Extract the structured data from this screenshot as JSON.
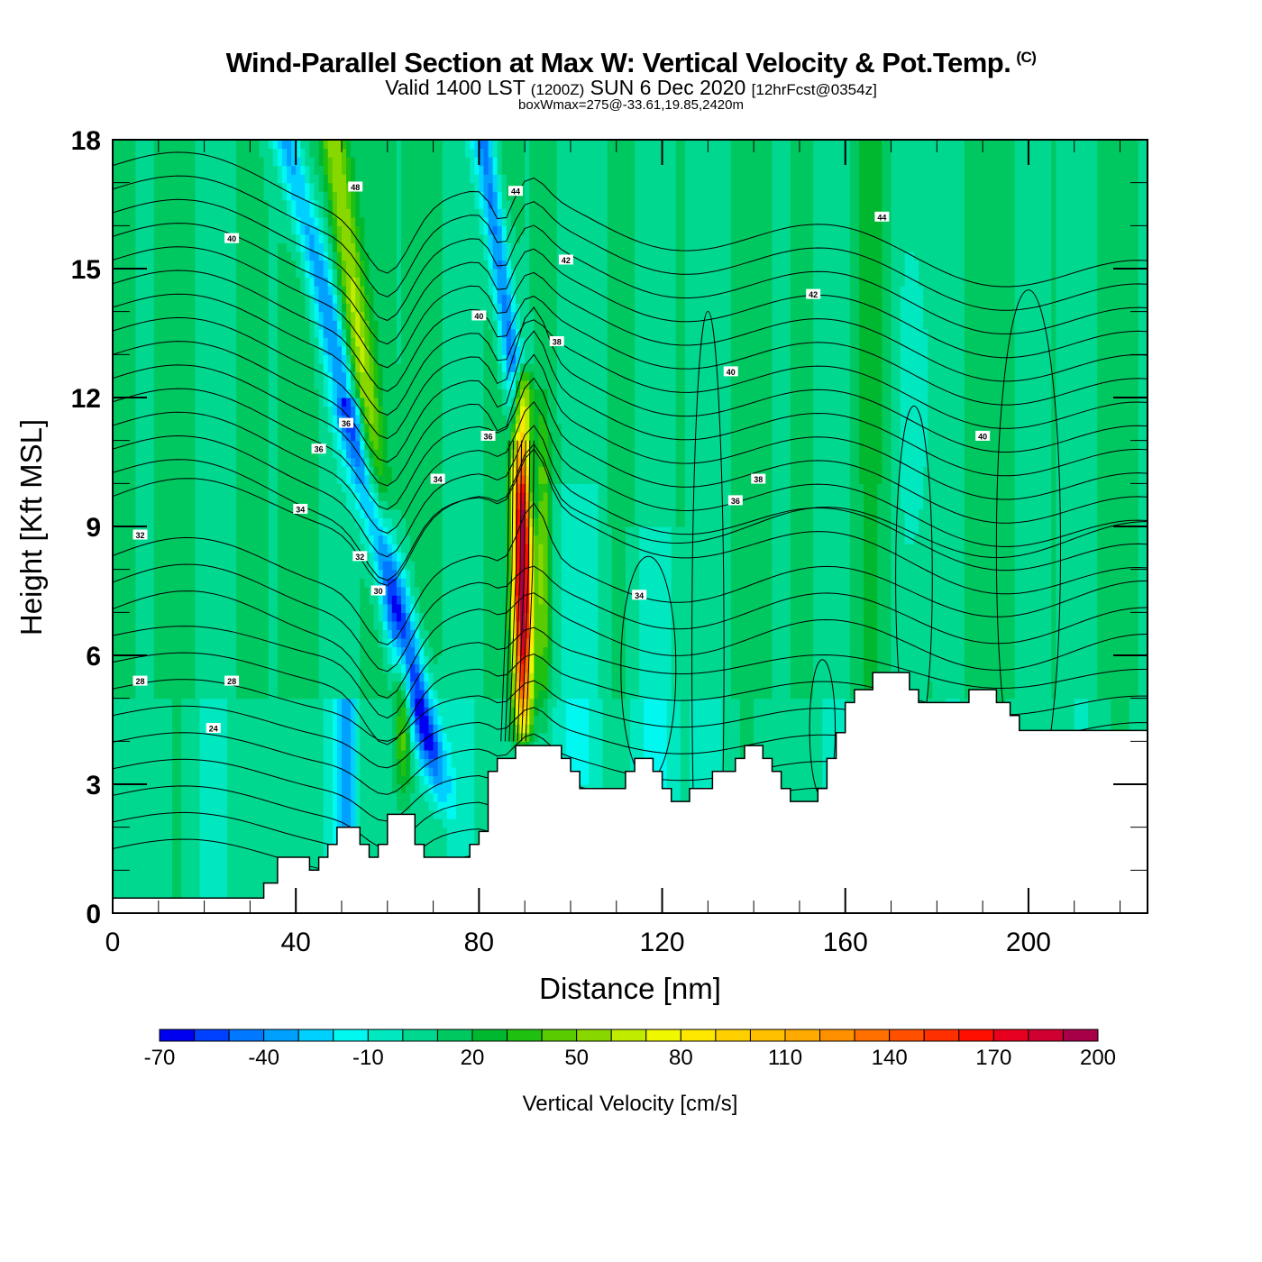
{
  "header": {
    "title": "Wind-Parallel Section at Max W: Vertical Velocity & Pot.Temp.",
    "copyright": "(C)",
    "valid_prefix": "Valid 1400 LST",
    "valid_utc": "(1200Z)",
    "valid_date": "SUN 6 Dec 2020",
    "forecast": "[12hrFcst@0354z]",
    "boxwmax": "boxWmax=275@-33.61,19.85,2420m"
  },
  "chart_data": {
    "type": "heatmap",
    "title": "Wind-Parallel Section at Max W: Vertical Velocity & Pot.Temp.",
    "xlabel": "Distance [nm]",
    "ylabel": "Height [Kft MSL]",
    "xlim": [
      0,
      226
    ],
    "ylim": [
      0,
      18
    ],
    "xticks": [
      0,
      40,
      80,
      120,
      160,
      200
    ],
    "yticks": [
      0,
      3,
      6,
      9,
      12,
      15,
      18
    ],
    "x_minor_step": 10,
    "y_minor_step": 1,
    "colorbar": {
      "title": "Vertical Velocity [cm/s]",
      "placement": "bottom",
      "levels": [
        -70,
        -60,
        -50,
        -40,
        -30,
        -20,
        -10,
        0,
        10,
        20,
        30,
        40,
        50,
        60,
        70,
        80,
        90,
        100,
        110,
        120,
        130,
        140,
        150,
        160,
        170,
        180,
        190,
        200
      ],
      "tick_labels": [
        "-70",
        "-40",
        "-10",
        "20",
        "50",
        "80",
        "110",
        "140",
        "170",
        "200"
      ],
      "tick_values": [
        -70,
        -40,
        -10,
        20,
        50,
        80,
        110,
        140,
        170,
        200
      ],
      "colors": [
        "#0000f0",
        "#0040ff",
        "#0078ff",
        "#00a0ff",
        "#00d0ff",
        "#00f8f0",
        "#00e8c0",
        "#00d890",
        "#00c860",
        "#00b830",
        "#20c010",
        "#58cc00",
        "#88d800",
        "#c0ec00",
        "#f0f800",
        "#ffe800",
        "#ffd000",
        "#ffc000",
        "#ffaa00",
        "#ff9000",
        "#ff7000",
        "#ff5000",
        "#ff3000",
        "#ff1000",
        "#e80020",
        "#d00030",
        "#a80048"
      ]
    },
    "background_value": 10,
    "terrain_kft": [
      [
        0,
        0.35
      ],
      [
        33,
        0.35
      ],
      [
        33,
        0.7
      ],
      [
        36,
        0.7
      ],
      [
        36,
        1.3
      ],
      [
        43,
        1.3
      ],
      [
        43,
        1.0
      ],
      [
        45,
        1.0
      ],
      [
        45,
        1.3
      ],
      [
        47,
        1.3
      ],
      [
        47,
        1.6
      ],
      [
        49,
        1.6
      ],
      [
        49,
        2.0
      ],
      [
        54,
        2.0
      ],
      [
        54,
        1.6
      ],
      [
        56,
        1.6
      ],
      [
        56,
        1.3
      ],
      [
        58,
        1.3
      ],
      [
        58,
        1.6
      ],
      [
        60,
        1.6
      ],
      [
        60,
        2.3
      ],
      [
        66,
        2.3
      ],
      [
        66,
        1.6
      ],
      [
        68,
        1.6
      ],
      [
        68,
        1.3
      ],
      [
        78,
        1.3
      ],
      [
        78,
        1.6
      ],
      [
        80,
        1.6
      ],
      [
        80,
        1.9
      ],
      [
        82,
        1.9
      ],
      [
        82,
        3.3
      ],
      [
        84,
        3.3
      ],
      [
        84,
        3.6
      ],
      [
        88,
        3.6
      ],
      [
        88,
        3.9
      ],
      [
        98,
        3.9
      ],
      [
        98,
        3.6
      ],
      [
        100,
        3.6
      ],
      [
        100,
        3.3
      ],
      [
        102,
        3.3
      ],
      [
        102,
        2.9
      ],
      [
        112,
        2.9
      ],
      [
        112,
        3.3
      ],
      [
        114,
        3.3
      ],
      [
        114,
        3.6
      ],
      [
        118,
        3.6
      ],
      [
        118,
        3.3
      ],
      [
        120,
        3.3
      ],
      [
        120,
        2.9
      ],
      [
        122,
        2.9
      ],
      [
        122,
        2.6
      ],
      [
        126,
        2.6
      ],
      [
        126,
        2.9
      ],
      [
        131,
        2.9
      ],
      [
        131,
        3.3
      ],
      [
        136,
        3.3
      ],
      [
        136,
        3.6
      ],
      [
        138,
        3.6
      ],
      [
        138,
        3.9
      ],
      [
        142,
        3.9
      ],
      [
        142,
        3.6
      ],
      [
        144,
        3.6
      ],
      [
        144,
        3.3
      ],
      [
        146,
        3.3
      ],
      [
        146,
        2.9
      ],
      [
        148,
        2.9
      ],
      [
        148,
        2.6
      ],
      [
        154,
        2.6
      ],
      [
        154,
        2.9
      ],
      [
        156,
        2.9
      ],
      [
        156,
        3.6
      ],
      [
        158,
        3.6
      ],
      [
        158,
        4.2
      ],
      [
        160,
        4.2
      ],
      [
        160,
        4.9
      ],
      [
        162,
        4.9
      ],
      [
        162,
        5.2
      ],
      [
        166,
        5.2
      ],
      [
        166,
        5.6
      ],
      [
        174,
        5.6
      ],
      [
        174,
        5.2
      ],
      [
        176,
        5.2
      ],
      [
        176,
        4.9
      ],
      [
        187,
        4.9
      ],
      [
        187,
        5.2
      ],
      [
        193,
        5.2
      ],
      [
        193,
        4.9
      ],
      [
        196,
        4.9
      ],
      [
        196,
        4.6
      ],
      [
        198,
        4.6
      ],
      [
        198,
        4.25
      ],
      [
        226,
        4.25
      ]
    ],
    "vertical_velocity_features": [
      {
        "name": "updraft-core",
        "x_center": 90,
        "height_range": [
          4.0,
          12.7
        ],
        "max_value": 200
      },
      {
        "name": "downdraft-band-1",
        "x_range": [
          45,
          65
        ],
        "height_range": [
          2.0,
          18
        ],
        "min_value": -70
      },
      {
        "name": "updraft-band-1",
        "x_range": [
          48,
          58
        ],
        "height_range": [
          11,
          18
        ],
        "max_value": 60
      },
      {
        "name": "downdraft-band-2",
        "x_range": [
          82,
          92
        ],
        "height_range": [
          9,
          18
        ],
        "min_value": -50
      },
      {
        "name": "updraft-lower",
        "x_center": 63,
        "height_range": [
          2.3,
          6.8
        ],
        "max_value": 50
      }
    ],
    "contour_field": "Potential Temperature",
    "contour_labels": [
      {
        "text": "48",
        "x": 53,
        "y": 16.9
      },
      {
        "text": "44",
        "x": 88,
        "y": 16.8
      },
      {
        "text": "40",
        "x": 26,
        "y": 15.7
      },
      {
        "text": "42",
        "x": 99,
        "y": 15.2
      },
      {
        "text": "44",
        "x": 168,
        "y": 16.2
      },
      {
        "text": "42",
        "x": 153,
        "y": 14.4
      },
      {
        "text": "40",
        "x": 80,
        "y": 13.9
      },
      {
        "text": "38",
        "x": 97,
        "y": 13.3
      },
      {
        "text": "40",
        "x": 135,
        "y": 12.6
      },
      {
        "text": "40",
        "x": 190,
        "y": 11.1
      },
      {
        "text": "36",
        "x": 51,
        "y": 11.4
      },
      {
        "text": "36",
        "x": 45,
        "y": 10.8
      },
      {
        "text": "36",
        "x": 82,
        "y": 11.1
      },
      {
        "text": "34",
        "x": 71,
        "y": 10.1
      },
      {
        "text": "38",
        "x": 141,
        "y": 10.1
      },
      {
        "text": "36",
        "x": 136,
        "y": 9.6
      },
      {
        "text": "34",
        "x": 41,
        "y": 9.4
      },
      {
        "text": "32",
        "x": 6,
        "y": 8.8
      },
      {
        "text": "32",
        "x": 54,
        "y": 8.3
      },
      {
        "text": "30",
        "x": 58,
        "y": 7.5
      },
      {
        "text": "34",
        "x": 115,
        "y": 7.4
      },
      {
        "text": "28",
        "x": 6,
        "y": 5.4
      },
      {
        "text": "28",
        "x": 26,
        "y": 5.4
      },
      {
        "text": "24",
        "x": 22,
        "y": 4.3
      }
    ]
  }
}
